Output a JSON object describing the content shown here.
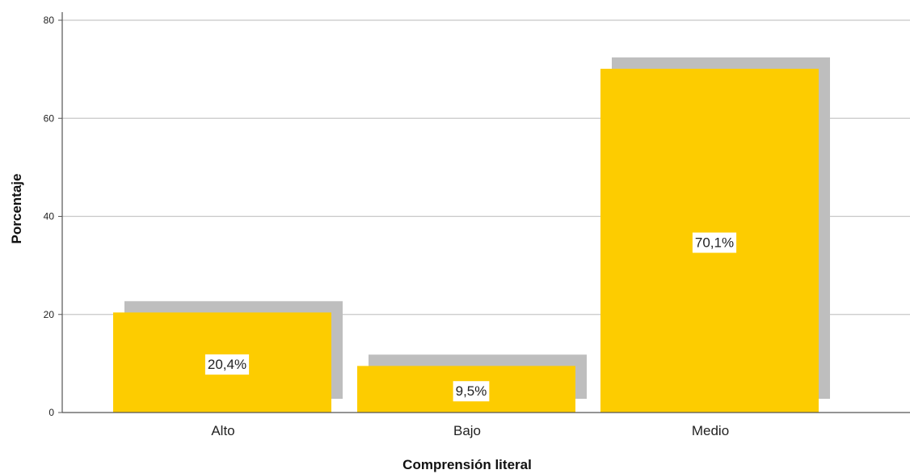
{
  "chart_data": {
    "type": "bar",
    "categories": [
      "Alto",
      "Bajo",
      "Medio"
    ],
    "values": [
      20.4,
      9.5,
      70.1
    ],
    "data_labels": [
      "20,4%",
      "9,5%",
      "70,1%"
    ],
    "xlabel": "Comprensión literal",
    "ylabel": "Porcentaje",
    "ylim": [
      0,
      80
    ],
    "yticks": [
      0,
      20,
      40,
      60,
      80
    ],
    "grid": true,
    "colors": {
      "bar": "#FDCC00",
      "shadow": "#BEBEBE",
      "grid": "#C8C8C8",
      "axis": "#555555"
    }
  }
}
